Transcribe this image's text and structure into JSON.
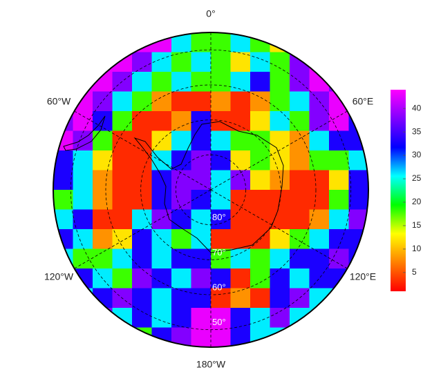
{
  "chart_data": {
    "type": "polar-heatmap",
    "meridians": [
      {
        "value": 0,
        "label": "0°"
      },
      {
        "value": 60,
        "label": "60°E"
      },
      {
        "value": 120,
        "label": "120°E"
      },
      {
        "value": 180,
        "label": "180°W"
      },
      {
        "value": -120,
        "label": "120°W"
      },
      {
        "value": -60,
        "label": "60°W"
      }
    ],
    "parallels": [
      {
        "value": 80,
        "label": "80°"
      },
      {
        "value": 70,
        "label": "70°"
      },
      {
        "value": 60,
        "label": "60°"
      },
      {
        "value": 50,
        "label": "50°"
      }
    ],
    "latlim": [
      90,
      45
    ],
    "clim": [
      1,
      44
    ],
    "cticks": [
      5,
      10,
      15,
      20,
      25,
      30,
      35,
      40
    ],
    "colormap": [
      "#ff0000",
      "#ff8000",
      "#ffff00",
      "#00ff00",
      "#00ffff",
      "#0000ff",
      "#8000ff",
      "#ff00ff"
    ],
    "values": [
      [
        26,
        26,
        38,
        43,
        43,
        43,
        26,
        18,
        18,
        26,
        18,
        12,
        38,
        38,
        26,
        26
      ],
      [
        33,
        33,
        43,
        43,
        38,
        26,
        18,
        26,
        18,
        12,
        26,
        18,
        38,
        43,
        38,
        33
      ],
      [
        33,
        43,
        43,
        38,
        26,
        18,
        26,
        18,
        18,
        26,
        33,
        18,
        38,
        43,
        38,
        33
      ],
      [
        26,
        43,
        38,
        26,
        18,
        8,
        3,
        3,
        8,
        3,
        8,
        18,
        26,
        38,
        43,
        33
      ],
      [
        38,
        43,
        33,
        18,
        3,
        3,
        8,
        33,
        3,
        3,
        12,
        26,
        18,
        38,
        43,
        33
      ],
      [
        43,
        38,
        18,
        3,
        3,
        12,
        26,
        33,
        26,
        18,
        18,
        12,
        8,
        26,
        33,
        33
      ],
      [
        33,
        26,
        12,
        3,
        3,
        26,
        33,
        38,
        33,
        12,
        18,
        12,
        8,
        18,
        18,
        26
      ],
      [
        33,
        26,
        8,
        3,
        3,
        33,
        38,
        38,
        26,
        38,
        12,
        8,
        3,
        3,
        12,
        33
      ],
      [
        18,
        26,
        8,
        3,
        3,
        33,
        38,
        33,
        26,
        3,
        3,
        3,
        3,
        3,
        18,
        33
      ],
      [
        26,
        33,
        3,
        3,
        26,
        38,
        33,
        26,
        33,
        3,
        3,
        3,
        3,
        8,
        26,
        38
      ],
      [
        33,
        26,
        8,
        12,
        33,
        26,
        18,
        26,
        3,
        3,
        3,
        12,
        18,
        26,
        33,
        33
      ],
      [
        26,
        18,
        18,
        26,
        33,
        26,
        33,
        33,
        18,
        26,
        18,
        26,
        33,
        33,
        38,
        33
      ],
      [
        26,
        33,
        26,
        18,
        38,
        33,
        26,
        38,
        33,
        3,
        18,
        33,
        26,
        33,
        33,
        26
      ],
      [
        26,
        26,
        33,
        38,
        33,
        26,
        33,
        33,
        3,
        8,
        3,
        33,
        38,
        26,
        26,
        26
      ],
      [
        26,
        26,
        38,
        26,
        33,
        26,
        33,
        43,
        43,
        33,
        26,
        38,
        26,
        26,
        26,
        26
      ],
      [
        26,
        26,
        26,
        26,
        18,
        33,
        38,
        43,
        43,
        33,
        26,
        26,
        26,
        26,
        26,
        26
      ]
    ]
  }
}
